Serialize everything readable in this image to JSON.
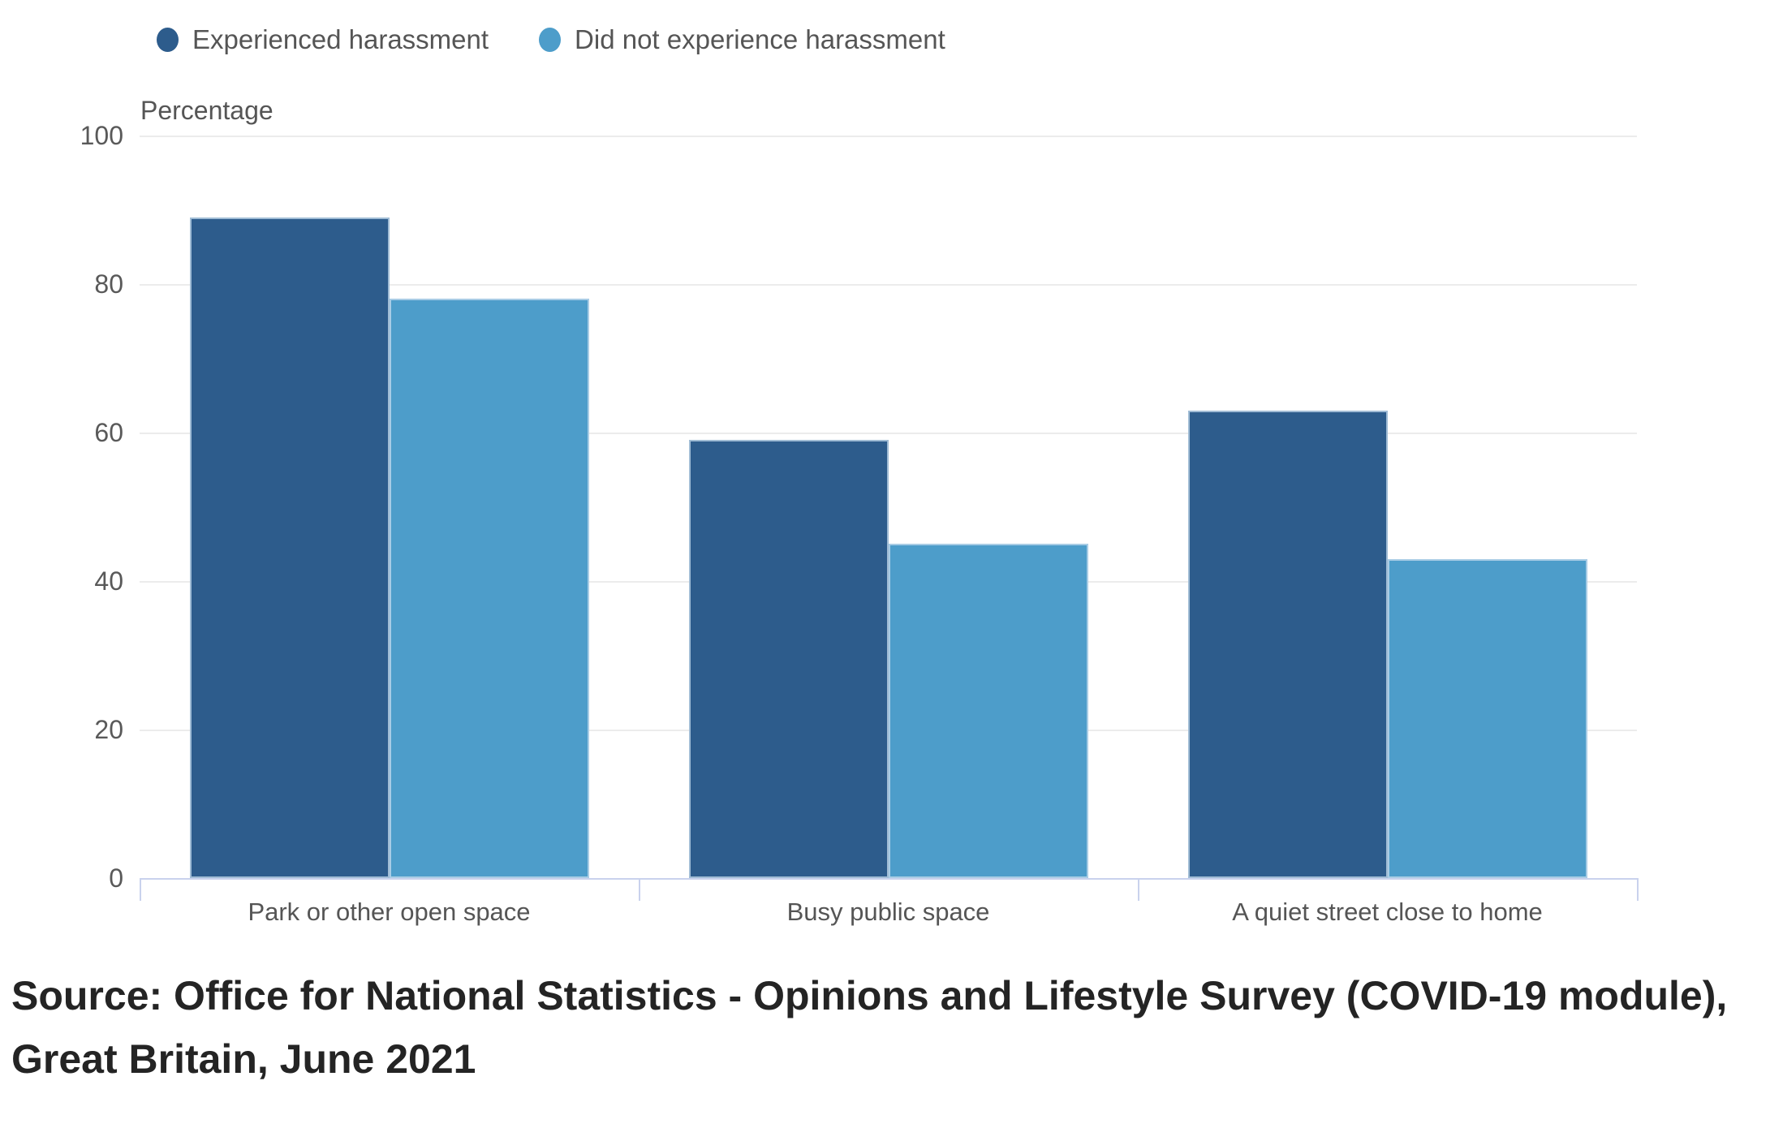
{
  "chart_data": {
    "type": "bar",
    "categories": [
      "Park or other open space",
      "Busy public space",
      "A quiet street close to home"
    ],
    "series": [
      {
        "name": "Experienced harassment",
        "color": "#2d5c8c",
        "values": [
          89,
          59,
          63
        ]
      },
      {
        "name": "Did not experience harassment",
        "color": "#4d9dca",
        "values": [
          78,
          45,
          43
        ]
      }
    ],
    "ylabel": "Percentage",
    "ylim": [
      0,
      100
    ],
    "yticks": [
      0,
      20,
      40,
      60,
      80,
      100
    ],
    "grid": true,
    "legend_position": "top",
    "source": "Source: Office for National Statistics - Opinions and Lifestyle Survey (COVID-19 module), Great Britain, June 2021"
  },
  "colors": {
    "gridline": "#ececec",
    "axis": "#c9d2ed",
    "label_text": "#555555",
    "source_text": "#242424"
  }
}
